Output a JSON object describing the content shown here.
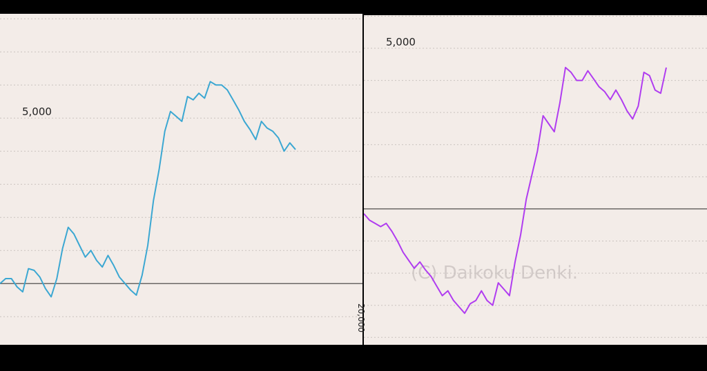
{
  "chart_data": [
    {
      "type": "line",
      "color": "#3ba7d2",
      "values": [
        0,
        150,
        150,
        -100,
        -250,
        450,
        400,
        200,
        -150,
        -400,
        150,
        1050,
        1700,
        1500,
        1150,
        800,
        1000,
        700,
        500,
        850,
        550,
        200,
        0,
        -200,
        -350,
        250,
        1150,
        2500,
        3450,
        4600,
        5200,
        5050,
        4900,
        5650,
        5550,
        5750,
        5600,
        6100,
        6000,
        6000,
        5850,
        5550,
        5250,
        4900,
        4650,
        4350,
        4900,
        4700,
        4600,
        4400,
        4000,
        4250,
        4050
      ],
      "ylim": [
        -1850,
        8150
      ],
      "gridlines": [
        -1000,
        0,
        1000,
        2000,
        3000,
        4000,
        5000,
        6000,
        7000,
        8000
      ],
      "yticks": [
        {
          "value": 5000,
          "label": "5,000"
        }
      ]
    },
    {
      "type": "line",
      "color": "#b03cf0",
      "values": [
        -150,
        -350,
        -450,
        -550,
        -450,
        -700,
        -1000,
        -1350,
        -1600,
        -1850,
        -1650,
        -1900,
        -2100,
        -2400,
        -2700,
        -2550,
        -2850,
        -3050,
        -3250,
        -2950,
        -2850,
        -2550,
        -2850,
        -3000,
        -2300,
        -2500,
        -2700,
        -1650,
        -800,
        300,
        1050,
        1800,
        2900,
        2650,
        2400,
        3300,
        4400,
        4250,
        4000,
        4000,
        4300,
        4050,
        3800,
        3650,
        3400,
        3700,
        3400,
        3050,
        2800,
        3200,
        4250,
        4150,
        3700,
        3600,
        4400
      ],
      "ylim": [
        -4230,
        6030
      ],
      "gridlines": [
        -4000,
        -3000,
        -2000,
        -1000,
        0,
        1000,
        2000,
        3000,
        4000,
        5000,
        6000
      ],
      "yticks": [
        {
          "value": 5000,
          "label": "5,000"
        }
      ],
      "watermark": "(C) Daikoku Denki."
    }
  ],
  "edge_label": "20,000"
}
